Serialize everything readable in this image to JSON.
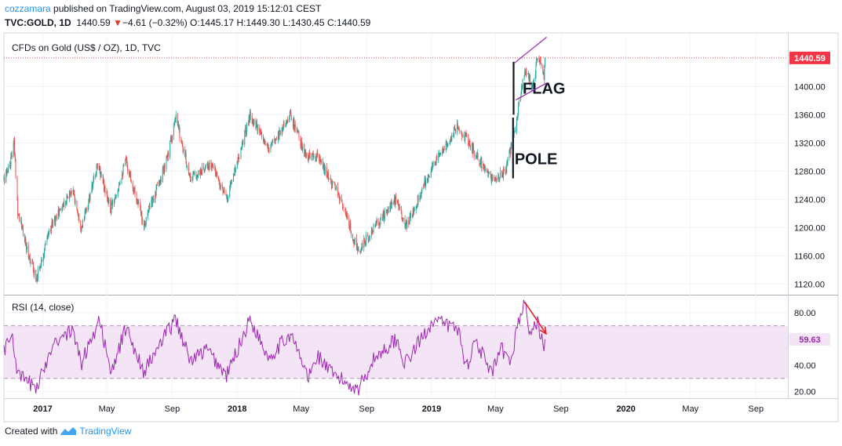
{
  "header": {
    "author": "cozzamara",
    "published_text": "published on TradingView.com, August 03, 2019 15:12:01 CEST",
    "symbol": "TVC:GOLD, 1D",
    "last": "1440.59",
    "change": "−4.61 (−0.32%)",
    "open_label": "O:",
    "open": "1445.17",
    "high_label": "H:",
    "high": "1449.30",
    "low_label": "L:",
    "low": "1430.45",
    "close_label": "C:",
    "close": "1440.59"
  },
  "footer": {
    "created_with": "Created with",
    "brand": "TradingView"
  },
  "colors": {
    "up": "#26a69a",
    "down": "#ef5350",
    "rsi": "#9c27b0",
    "flag": "#9c27b0",
    "pole": "#131722",
    "arrow": "#e91e23",
    "price_label": "#f23645",
    "rsi_band": "#f3e5f5"
  },
  "chart_data": [
    {
      "type": "candlestick",
      "title": "CFDs on Gold (US$ / OZ), 1D, TVC",
      "x_tick_labels": [
        "2017",
        "May",
        "Sep",
        "2018",
        "May",
        "Sep",
        "2019",
        "May",
        "Sep",
        "2020",
        "May",
        "Sep"
      ],
      "x_tick_dates": [
        "2017-01-01",
        "2017-05-01",
        "2017-09-01",
        "2018-01-01",
        "2018-05-01",
        "2018-09-01",
        "2019-01-01",
        "2019-05-01",
        "2019-09-01",
        "2020-01-01",
        "2020-05-01",
        "2020-09-01"
      ],
      "x_range": [
        "2016-10-20",
        "2020-10-31"
      ],
      "y_ticks": [
        1120,
        1160,
        1200,
        1240,
        1280,
        1320,
        1360,
        1400
      ],
      "y_tick_labels": [
        "1120.00",
        "1160.00",
        "1200.00",
        "1240.00",
        "1280.00",
        "1320.00",
        "1360.00",
        "1400.00"
      ],
      "ylim": [
        1105,
        1476
      ],
      "last_price": 1440.59,
      "last_price_label": "1440.59",
      "grid": true,
      "close_path": [
        {
          "date": "2016-10-20",
          "value": 1268
        },
        {
          "date": "2016-10-31",
          "value": 1290
        },
        {
          "date": "2016-11-08",
          "value": 1320
        },
        {
          "date": "2016-11-15",
          "value": 1225
        },
        {
          "date": "2016-11-30",
          "value": 1175
        },
        {
          "date": "2016-12-20",
          "value": 1128
        },
        {
          "date": "2017-01-15",
          "value": 1200
        },
        {
          "date": "2017-02-25",
          "value": 1255
        },
        {
          "date": "2017-03-15",
          "value": 1200
        },
        {
          "date": "2017-04-15",
          "value": 1290
        },
        {
          "date": "2017-05-08",
          "value": 1225
        },
        {
          "date": "2017-06-06",
          "value": 1295
        },
        {
          "date": "2017-07-10",
          "value": 1205
        },
        {
          "date": "2017-08-20",
          "value": 1290
        },
        {
          "date": "2017-09-08",
          "value": 1355
        },
        {
          "date": "2017-10-05",
          "value": 1270
        },
        {
          "date": "2017-11-15",
          "value": 1290
        },
        {
          "date": "2017-12-12",
          "value": 1240
        },
        {
          "date": "2018-01-25",
          "value": 1360
        },
        {
          "date": "2018-02-28",
          "value": 1310
        },
        {
          "date": "2018-04-11",
          "value": 1360
        },
        {
          "date": "2018-05-10",
          "value": 1300
        },
        {
          "date": "2018-06-01",
          "value": 1300
        },
        {
          "date": "2018-07-15",
          "value": 1240
        },
        {
          "date": "2018-08-16",
          "value": 1165
        },
        {
          "date": "2018-09-15",
          "value": 1200
        },
        {
          "date": "2018-10-26",
          "value": 1240
        },
        {
          "date": "2018-11-13",
          "value": 1200
        },
        {
          "date": "2019-01-01",
          "value": 1285
        },
        {
          "date": "2019-02-20",
          "value": 1345
        },
        {
          "date": "2019-04-23",
          "value": 1268
        },
        {
          "date": "2019-05-20",
          "value": 1280
        },
        {
          "date": "2019-06-06",
          "value": 1340
        },
        {
          "date": "2019-06-25",
          "value": 1425
        },
        {
          "date": "2019-07-10",
          "value": 1400
        },
        {
          "date": "2019-07-20",
          "value": 1445
        },
        {
          "date": "2019-07-31",
          "value": 1410
        },
        {
          "date": "2019-08-02",
          "value": 1440.59
        }
      ],
      "annotations": [
        {
          "type": "text",
          "label": "FLAG",
          "date": "2019-06-21",
          "value": 1390
        },
        {
          "type": "text",
          "label": "POLE",
          "date": "2019-06-06",
          "value": 1290
        },
        {
          "type": "vertical_line",
          "date": "2019-06-03",
          "from": 1270,
          "to": 1356
        },
        {
          "type": "vertical_line",
          "date": "2019-06-04",
          "from": 1360,
          "to": 1435
        },
        {
          "type": "trend_line",
          "from": {
            "date": "2019-06-05",
            "value": 1433
          },
          "to": {
            "date": "2019-08-05",
            "value": 1470
          }
        },
        {
          "type": "trend_line",
          "from": {
            "date": "2019-06-08",
            "value": 1381
          },
          "to": {
            "date": "2019-08-05",
            "value": 1405
          }
        }
      ]
    },
    {
      "type": "line",
      "title": "RSI (14, close)",
      "last_value": 59.63,
      "last_value_label": "59.63",
      "y_ticks": [
        20,
        40,
        60,
        80
      ],
      "y_tick_labels": [
        "20.00",
        "40.00",
        "",
        "80.00"
      ],
      "ylim": [
        15,
        93
      ],
      "band": [
        30,
        70
      ],
      "band_labels": [
        "",
        ""
      ],
      "rsi_path": [
        {
          "date": "2016-10-20",
          "value": 52
        },
        {
          "date": "2016-11-05",
          "value": 63
        },
        {
          "date": "2016-11-15",
          "value": 32
        },
        {
          "date": "2016-12-05",
          "value": 27
        },
        {
          "date": "2016-12-22",
          "value": 23
        },
        {
          "date": "2017-01-20",
          "value": 58
        },
        {
          "date": "2017-02-25",
          "value": 66
        },
        {
          "date": "2017-03-15",
          "value": 42
        },
        {
          "date": "2017-04-18",
          "value": 76
        },
        {
          "date": "2017-05-08",
          "value": 32
        },
        {
          "date": "2017-06-06",
          "value": 69
        },
        {
          "date": "2017-07-10",
          "value": 35
        },
        {
          "date": "2017-08-18",
          "value": 62
        },
        {
          "date": "2017-09-08",
          "value": 75
        },
        {
          "date": "2017-10-05",
          "value": 43
        },
        {
          "date": "2017-11-05",
          "value": 52
        },
        {
          "date": "2017-12-12",
          "value": 32
        },
        {
          "date": "2018-01-25",
          "value": 75
        },
        {
          "date": "2018-03-01",
          "value": 46
        },
        {
          "date": "2018-04-11",
          "value": 64
        },
        {
          "date": "2018-05-15",
          "value": 30
        },
        {
          "date": "2018-06-01",
          "value": 48
        },
        {
          "date": "2018-06-28",
          "value": 33
        },
        {
          "date": "2018-08-16",
          "value": 22
        },
        {
          "date": "2018-09-15",
          "value": 45
        },
        {
          "date": "2018-10-26",
          "value": 60
        },
        {
          "date": "2018-11-13",
          "value": 41
        },
        {
          "date": "2019-01-03",
          "value": 74
        },
        {
          "date": "2019-02-20",
          "value": 68
        },
        {
          "date": "2019-03-07",
          "value": 38
        },
        {
          "date": "2019-03-25",
          "value": 60
        },
        {
          "date": "2019-04-23",
          "value": 33
        },
        {
          "date": "2019-05-13",
          "value": 52
        },
        {
          "date": "2019-05-28",
          "value": 40
        },
        {
          "date": "2019-06-10",
          "value": 68
        },
        {
          "date": "2019-06-24",
          "value": 88
        },
        {
          "date": "2019-07-05",
          "value": 64
        },
        {
          "date": "2019-07-19",
          "value": 72
        },
        {
          "date": "2019-07-31",
          "value": 56
        },
        {
          "date": "2019-08-02",
          "value": 59.63
        }
      ],
      "annotations": [
        {
          "type": "arrow",
          "from": {
            "date": "2019-06-25",
            "value": 88
          },
          "to": {
            "date": "2019-08-04",
            "value": 64
          }
        }
      ]
    }
  ]
}
